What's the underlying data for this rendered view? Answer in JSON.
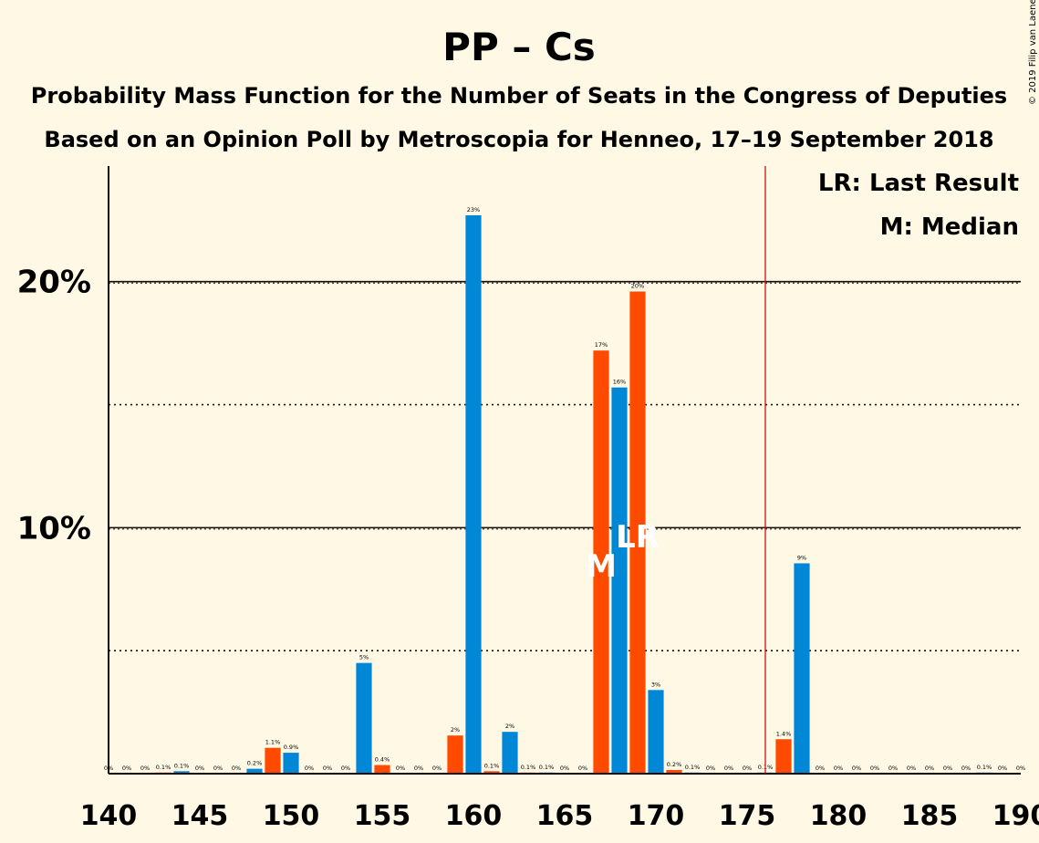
{
  "chart_data": {
    "type": "bar",
    "title": "PP – Cs",
    "subtitle_1": "Probability Mass Function for the Number of Seats in the Congress of Deputies",
    "subtitle_2": "Based on an Opinion Poll by Metroscopia for Henneo, 17–19 September 2018",
    "copyright": "© 2019 Filip van Laenen",
    "legend": {
      "lr": "LR: Last Result",
      "m": "M: Median",
      "position": "top-right"
    },
    "xlim": [
      140,
      190
    ],
    "ylim": [
      0,
      24.7
    ],
    "x_ticks": [
      "140",
      "145",
      "150",
      "155",
      "160",
      "165",
      "170",
      "175",
      "180",
      "185",
      "190"
    ],
    "y_ticks": [
      {
        "value": 10,
        "label": "10%"
      },
      {
        "value": 20,
        "label": "20%"
      }
    ],
    "dotted_gridlines": [
      5,
      15
    ],
    "majority_line": 176,
    "median_seat": 167,
    "median_label": "M",
    "last_result_seat": 169,
    "last_result_label": "LR",
    "colors": {
      "even": "#0088d6",
      "odd": "#ff4a00",
      "majority": "#cc0000",
      "background": "#fff8e5"
    },
    "bars": [
      {
        "seat": 140,
        "value": 0,
        "label": "0%"
      },
      {
        "seat": 141,
        "value": 0,
        "label": "0%"
      },
      {
        "seat": 142,
        "value": 0,
        "label": "0%"
      },
      {
        "seat": 143,
        "value": 0.02,
        "label": "0.1%"
      },
      {
        "seat": 144,
        "value": 0.1,
        "label": "0.1%"
      },
      {
        "seat": 145,
        "value": 0,
        "label": "0%"
      },
      {
        "seat": 146,
        "value": 0,
        "label": "0%"
      },
      {
        "seat": 147,
        "value": 0,
        "label": "0%"
      },
      {
        "seat": 148,
        "value": 0.2,
        "label": "0.2%"
      },
      {
        "seat": 149,
        "value": 1.05,
        "label": "1.1%"
      },
      {
        "seat": 150,
        "value": 0.85,
        "label": "0.9%"
      },
      {
        "seat": 151,
        "value": 0,
        "label": "0%"
      },
      {
        "seat": 152,
        "value": 0,
        "label": "0%"
      },
      {
        "seat": 153,
        "value": 0,
        "label": "0%"
      },
      {
        "seat": 154,
        "value": 4.5,
        "label": "5%"
      },
      {
        "seat": 155,
        "value": 0.35,
        "label": "0.4%"
      },
      {
        "seat": 156,
        "value": 0,
        "label": "0%"
      },
      {
        "seat": 157,
        "value": 0,
        "label": "0%"
      },
      {
        "seat": 158,
        "value": 0,
        "label": "0%"
      },
      {
        "seat": 159,
        "value": 1.55,
        "label": "2%"
      },
      {
        "seat": 160,
        "value": 22.7,
        "label": "23%"
      },
      {
        "seat": 161,
        "value": 0.1,
        "label": "0.1%"
      },
      {
        "seat": 162,
        "value": 1.7,
        "label": "2%"
      },
      {
        "seat": 163,
        "value": 0.02,
        "label": "0.1%"
      },
      {
        "seat": 164,
        "value": 0.02,
        "label": "0.1%"
      },
      {
        "seat": 165,
        "value": 0,
        "label": "0%"
      },
      {
        "seat": 166,
        "value": 0,
        "label": "0%"
      },
      {
        "seat": 167,
        "value": 17.2,
        "label": "17%"
      },
      {
        "seat": 168,
        "value": 15.7,
        "label": "16%"
      },
      {
        "seat": 169,
        "value": 19.6,
        "label": "20%"
      },
      {
        "seat": 170,
        "value": 3.4,
        "label": "3%"
      },
      {
        "seat": 171,
        "value": 0.15,
        "label": "0.2%"
      },
      {
        "seat": 172,
        "value": 0.02,
        "label": "0.1%"
      },
      {
        "seat": 173,
        "value": 0,
        "label": "0%"
      },
      {
        "seat": 174,
        "value": 0,
        "label": "0%"
      },
      {
        "seat": 175,
        "value": 0,
        "label": "0%"
      },
      {
        "seat": 176,
        "value": 0.02,
        "label": "0.1%"
      },
      {
        "seat": 177,
        "value": 1.4,
        "label": "1.4%"
      },
      {
        "seat": 178,
        "value": 8.55,
        "label": "9%"
      },
      {
        "seat": 179,
        "value": 0,
        "label": "0%"
      },
      {
        "seat": 180,
        "value": 0,
        "label": "0%"
      },
      {
        "seat": 181,
        "value": 0,
        "label": "0%"
      },
      {
        "seat": 182,
        "value": 0,
        "label": "0%"
      },
      {
        "seat": 183,
        "value": 0,
        "label": "0%"
      },
      {
        "seat": 184,
        "value": 0,
        "label": "0%"
      },
      {
        "seat": 185,
        "value": 0,
        "label": "0%"
      },
      {
        "seat": 186,
        "value": 0,
        "label": "0%"
      },
      {
        "seat": 187,
        "value": 0,
        "label": "0%"
      },
      {
        "seat": 188,
        "value": 0.02,
        "label": "0.1%"
      },
      {
        "seat": 189,
        "value": 0,
        "label": "0%"
      },
      {
        "seat": 190,
        "value": 0,
        "label": "0%"
      }
    ]
  }
}
